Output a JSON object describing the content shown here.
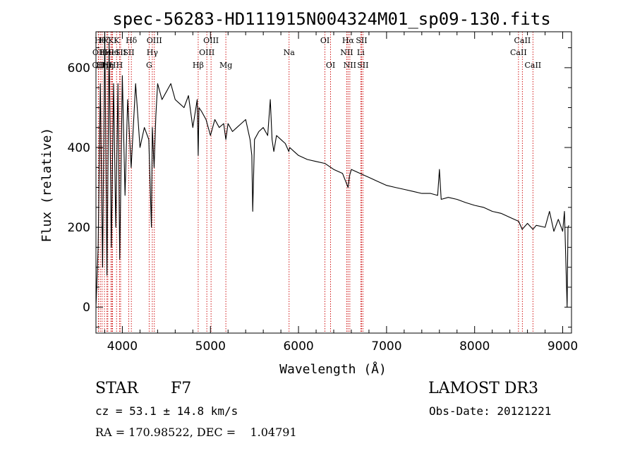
{
  "chart_data": {
    "type": "line",
    "title": "spec-56283-HD111915N004324M01_sp09-130.fits",
    "xlabel": "Wavelength (Å)",
    "ylabel": "Flux (relative)",
    "xlim": [
      3700,
      9100
    ],
    "ylim": [
      -65,
      690
    ],
    "xticks": [
      4000,
      5000,
      6000,
      7000,
      8000,
      9000
    ],
    "xtick_labels": [
      "4000",
      "5000",
      "6000",
      "7000",
      "8000",
      "9000"
    ],
    "yticks": [
      0,
      200,
      400,
      600
    ],
    "ytick_labels": [
      "0",
      "200",
      "400",
      "600"
    ],
    "series": [
      {
        "name": "flux",
        "x": [
          3700,
          3725,
          3750,
          3775,
          3800,
          3825,
          3850,
          3875,
          3900,
          3925,
          3950,
          3970,
          4000,
          4030,
          4060,
          4100,
          4150,
          4200,
          4250,
          4300,
          4330,
          4340,
          4360,
          4380,
          4400,
          4450,
          4500,
          4550,
          4600,
          4650,
          4700,
          4750,
          4800,
          4850,
          4861,
          4870,
          4900,
          4950,
          5000,
          5050,
          5100,
          5150,
          5175,
          5200,
          5250,
          5300,
          5350,
          5400,
          5450,
          5470,
          5480,
          5500,
          5550,
          5600,
          5650,
          5680,
          5700,
          5720,
          5750,
          5800,
          5850,
          5890,
          5900,
          5950,
          6000,
          6100,
          6200,
          6300,
          6400,
          6500,
          6563,
          6580,
          6600,
          6700,
          6800,
          6900,
          7000,
          7100,
          7200,
          7300,
          7400,
          7500,
          7580,
          7600,
          7620,
          7700,
          7800,
          7900,
          8000,
          8100,
          8200,
          8300,
          8400,
          8500,
          8540,
          8600,
          8662,
          8700,
          8800,
          8850,
          8900,
          8950,
          9000,
          9020,
          9050,
          9060,
          9070
        ],
        "y": [
          0,
          150,
          560,
          100,
          690,
          80,
          660,
          150,
          560,
          200,
          560,
          120,
          580,
          280,
          520,
          350,
          560,
          400,
          450,
          420,
          200,
          450,
          350,
          480,
          560,
          520,
          540,
          560,
          520,
          510,
          500,
          530,
          450,
          520,
          380,
          500,
          490,
          470,
          430,
          470,
          450,
          460,
          420,
          460,
          440,
          450,
          460,
          470,
          420,
          380,
          240,
          420,
          440,
          450,
          430,
          520,
          420,
          390,
          430,
          420,
          410,
          390,
          400,
          390,
          380,
          370,
          365,
          360,
          345,
          335,
          300,
          330,
          345,
          335,
          325,
          315,
          305,
          300,
          295,
          290,
          285,
          285,
          280,
          345,
          270,
          275,
          270,
          262,
          255,
          250,
          240,
          235,
          225,
          215,
          195,
          210,
          195,
          205,
          200,
          240,
          190,
          220,
          190,
          240,
          0,
          200,
          205
        ]
      }
    ],
    "line_markers": [
      {
        "x": 3727,
        "label": "OII",
        "row": 3
      },
      {
        "x": 3730,
        "label": "OII",
        "row": 2
      },
      {
        "x": 3750,
        "label": "Hθ",
        "row": 1
      },
      {
        "x": 3770,
        "label": "Hη",
        "row": 3
      },
      {
        "x": 3797,
        "label": "Hζ",
        "row": 1
      },
      {
        "x": 3825,
        "label": "HeI",
        "row": 2
      },
      {
        "x": 3835,
        "label": "Hη",
        "row": 3
      },
      {
        "x": 3869,
        "label": "K",
        "row": 1
      },
      {
        "x": 3880,
        "label": "HeI",
        "row": 2
      },
      {
        "x": 3889,
        "label": "H",
        "row": 3
      },
      {
        "x": 3934,
        "label": "K",
        "row": 1
      },
      {
        "x": 3968,
        "label": "H",
        "row": 3
      },
      {
        "x": 3980,
        "label": "SII",
        "row": 2
      },
      {
        "x": 4072,
        "label": "SII",
        "row": 2
      },
      {
        "x": 4102,
        "label": "Hδ",
        "row": 1
      },
      {
        "x": 4304,
        "label": "G",
        "row": 3
      },
      {
        "x": 4340,
        "label": "Hγ",
        "row": 2
      },
      {
        "x": 4363,
        "label": "OIII",
        "row": 1
      },
      {
        "x": 4861,
        "label": "Hβ",
        "row": 3
      },
      {
        "x": 4959,
        "label": "OIII",
        "row": 2
      },
      {
        "x": 5007,
        "label": "OIII",
        "row": 1
      },
      {
        "x": 5175,
        "label": "Mg",
        "row": 3
      },
      {
        "x": 5893,
        "label": "Na",
        "row": 2
      },
      {
        "x": 6300,
        "label": "OI",
        "row": 1
      },
      {
        "x": 6364,
        "label": "OI",
        "row": 3
      },
      {
        "x": 6548,
        "label": "NII",
        "row": 2
      },
      {
        "x": 6563,
        "label": "Hα",
        "row": 1
      },
      {
        "x": 6583,
        "label": "NII",
        "row": 3
      },
      {
        "x": 6707,
        "label": "Li",
        "row": 2
      },
      {
        "x": 6716,
        "label": "SII",
        "row": 1
      },
      {
        "x": 6731,
        "label": "SII",
        "row": 3
      },
      {
        "x": 8498,
        "label": "CaII",
        "row": 2
      },
      {
        "x": 8542,
        "label": "CaII",
        "row": 1
      },
      {
        "x": 8662,
        "label": "CaII",
        "row": 3
      }
    ],
    "line_marker_color": "#cc0000",
    "line_color": "#000000"
  },
  "info": {
    "class": "STAR",
    "subclass": "F7",
    "survey": "LAMOST DR3",
    "cz": "cz = 53.1 ± 14.8 km/s",
    "obs_date": "Obs-Date: 20121221",
    "radec": "RA = 170.98522, DEC =    1.04791"
  }
}
